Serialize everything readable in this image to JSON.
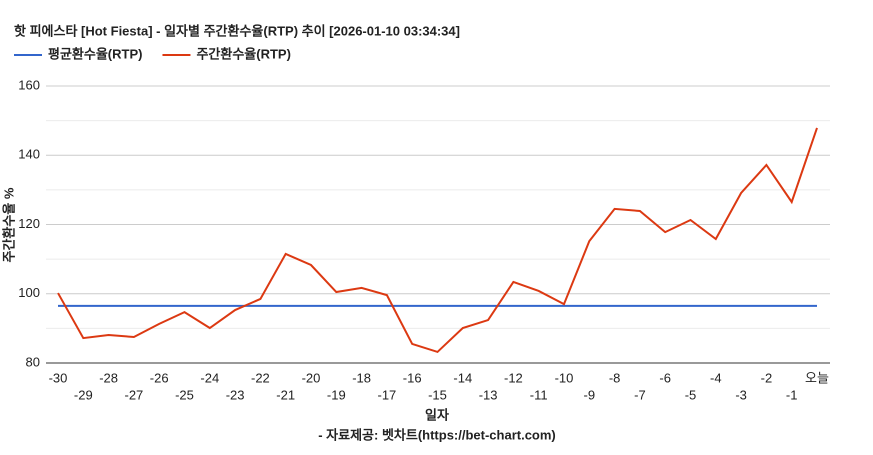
{
  "chart_data": {
    "type": "line",
    "title": "핫 피에스타 [Hot Fiesta] - 일자별 주간환수율(RTP) 추이 [2026-01-10 03:34:34]",
    "y_label": "주간환수율 %",
    "x_label": "일자",
    "source": "- 자료제공: 벳차트(https://bet-chart.com)",
    "categories": [
      "-30",
      "-29",
      "-28",
      "-27",
      "-26",
      "-25",
      "-24",
      "-23",
      "-22",
      "-21",
      "-20",
      "-19",
      "-18",
      "-17",
      "-16",
      "-15",
      "-14",
      "-13",
      "-12",
      "-11",
      "-10",
      "-9",
      "-8",
      "-7",
      "-6",
      "-5",
      "-4",
      "-3",
      "-2",
      "-1",
      "오늘"
    ],
    "series": [
      {
        "name": "평균환수율(RTP)",
        "color": "#3366cc",
        "values": [
          96.5,
          96.5,
          96.5,
          96.5,
          96.5,
          96.5,
          96.5,
          96.5,
          96.5,
          96.5,
          96.5,
          96.5,
          96.5,
          96.5,
          96.5,
          96.5,
          96.5,
          96.5,
          96.5,
          96.5,
          96.5,
          96.5,
          96.5,
          96.5,
          96.5,
          96.5,
          96.5,
          96.5,
          96.5,
          96.5,
          96.5
        ]
      },
      {
        "name": "주간환수율(RTP)",
        "color": "#dc3912",
        "values": [
          100.2,
          87.2,
          88.1,
          87.5,
          91.3,
          94.7,
          90.1,
          95.3,
          98.5,
          111.5,
          108.3,
          100.5,
          101.7,
          99.6,
          85.5,
          83.2,
          90.1,
          92.4,
          103.4,
          100.8,
          97.0,
          115.2,
          124.5,
          123.9,
          117.8,
          121.3,
          115.8,
          129.1,
          137.2,
          126.5,
          147.9
        ]
      }
    ],
    "ylim": [
      80,
      160
    ],
    "yticks": [
      80,
      100,
      120,
      140,
      160
    ],
    "minor_yticks": [
      90,
      110,
      130,
      150
    ],
    "grid": true
  }
}
